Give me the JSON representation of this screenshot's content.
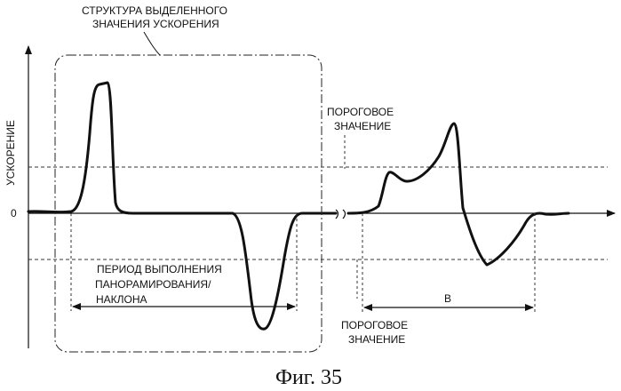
{
  "diagram": {
    "y_axis_label": "УСКОРЕНИЕ",
    "zero_label": "0",
    "callout": {
      "line1": "СТРУКТУРА ВЫДЕЛЕННОГО",
      "line2": "ЗНАЧЕНИЯ УСКОРЕНИЯ"
    },
    "threshold_upper": {
      "line1": "ПОРОГОВОЕ",
      "line2": "ЗНАЧЕНИЕ"
    },
    "threshold_lower": {
      "line1": "ПОРОГОВОЕ",
      "line2": "ЗНАЧЕНИЕ"
    },
    "period": {
      "line1": "ПЕРИОД ВЫПОЛНЕНИЯ",
      "line2": "ПАНОРАМИРОВАНИЯ/",
      "line3": "НАКЛОНА"
    },
    "interval_b": "B",
    "caption": "Фиг. 35"
  }
}
